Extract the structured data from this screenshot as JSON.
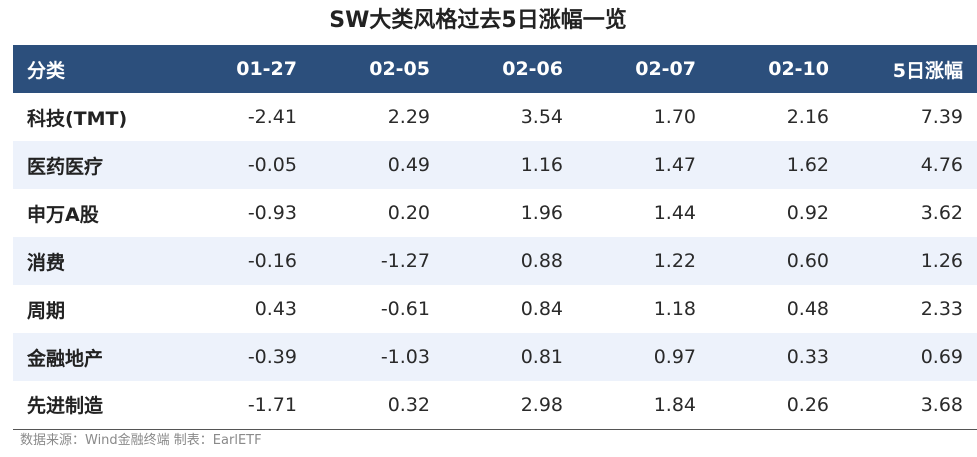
{
  "title": "SW大类风格过去5日涨幅一览",
  "source": "数据来源：Wind金融终端 制表：EarlETF",
  "chart_data": {
    "type": "table",
    "title": "SW大类风格过去5日涨幅一览",
    "columns": [
      "分类",
      "01-27",
      "02-05",
      "02-06",
      "02-07",
      "02-10",
      "5日涨幅"
    ],
    "rows": [
      {
        "category": "科技(TMT)",
        "values": [
          "-2.41",
          "2.29",
          "3.54",
          "1.70",
          "2.16",
          "7.39"
        ]
      },
      {
        "category": "医药医疗",
        "values": [
          "-0.05",
          "0.49",
          "1.16",
          "1.47",
          "1.62",
          "4.76"
        ]
      },
      {
        "category": "申万A股",
        "values": [
          "-0.93",
          "0.20",
          "1.96",
          "1.44",
          "0.92",
          "3.62"
        ]
      },
      {
        "category": "消费",
        "values": [
          "-0.16",
          "-1.27",
          "0.88",
          "1.22",
          "0.60",
          "1.26"
        ]
      },
      {
        "category": "周期",
        "values": [
          "0.43",
          "-0.61",
          "0.84",
          "1.18",
          "0.48",
          "2.33"
        ]
      },
      {
        "category": "金融地产",
        "values": [
          "-0.39",
          "-1.03",
          "0.81",
          "0.97",
          "0.33",
          "0.69"
        ]
      },
      {
        "category": "先进制造",
        "values": [
          "-1.71",
          "0.32",
          "2.98",
          "1.84",
          "0.26",
          "3.68"
        ]
      }
    ]
  },
  "colors": {
    "header_bg": "#2c4f7c",
    "header_text": "#ffffff",
    "stripe": "#edf2fb"
  }
}
